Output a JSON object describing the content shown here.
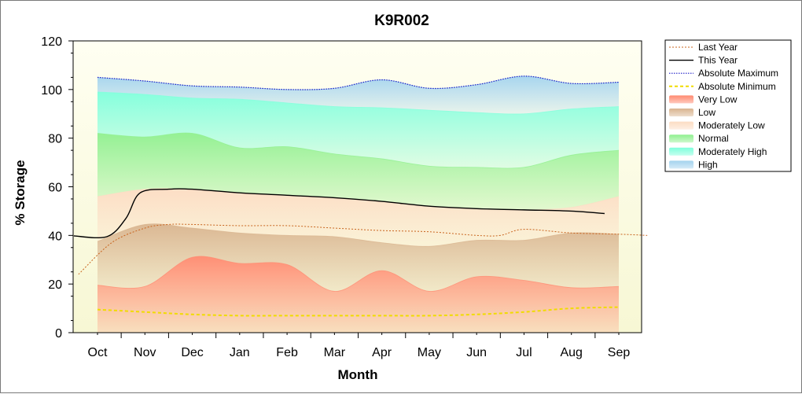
{
  "chart_data": {
    "type": "area",
    "title": "K9R002",
    "xlabel": "Month",
    "ylabel": "% Storage",
    "ylim": [
      0,
      120
    ],
    "yticks": [
      0,
      20,
      40,
      60,
      80,
      100,
      120
    ],
    "categories": [
      "Oct",
      "Nov",
      "Dec",
      "Jan",
      "Feb",
      "Mar",
      "Apr",
      "May",
      "Jun",
      "Jul",
      "Aug",
      "Sep"
    ],
    "grid": false,
    "legend_position": "right",
    "bands": [
      {
        "name": "Very Low",
        "color": "#ff8a70",
        "values": [
          19.5,
          19,
          31,
          28.5,
          28,
          17,
          25.5,
          17,
          23,
          21.5,
          18.5,
          19
        ]
      },
      {
        "name": "Low",
        "color": "#d9b48f",
        "values": [
          37.5,
          44.5,
          43,
          41,
          40,
          39.5,
          37,
          35.5,
          38,
          38,
          41,
          40.5
        ]
      },
      {
        "name": "Moderately Low",
        "color": "#fcdcc3",
        "values": [
          56,
          59,
          59,
          57.5,
          56.5,
          55.5,
          54,
          52,
          51,
          50.5,
          51.5,
          56
        ]
      },
      {
        "name": "Normal",
        "color": "#8ff08f",
        "values": [
          82,
          80.5,
          82,
          76,
          76.5,
          73.5,
          71.5,
          68.5,
          68,
          68,
          73,
          75
        ]
      },
      {
        "name": "Moderately High",
        "color": "#7fffdc",
        "values": [
          99,
          98,
          96.5,
          96,
          94.5,
          93,
          92.5,
          91.5,
          90.5,
          90,
          92,
          93
        ]
      },
      {
        "name": "High",
        "color": "#a3d3ee",
        "values": [
          105,
          103.5,
          101.5,
          101,
          100,
          100.5,
          104,
          100.5,
          102,
          105.5,
          102.5,
          103
        ]
      }
    ],
    "series": [
      {
        "name": "Last Year",
        "color": "#c8641e",
        "style": "dotted-thin",
        "x": [
          -0.4,
          0.3,
          1,
          1.5,
          2,
          3,
          4,
          5,
          6,
          7,
          8,
          8.5,
          9,
          10,
          11,
          11.6
        ],
        "values": [
          24,
          37,
          43,
          44.5,
          44.5,
          44,
          44,
          43,
          42,
          41.5,
          40,
          40,
          42.5,
          41,
          40.5,
          40
        ]
      },
      {
        "name": "This Year",
        "color": "#000000",
        "style": "solid",
        "x": [
          -0.5,
          0.2,
          0.6,
          0.9,
          1.5,
          2,
          3,
          4,
          5,
          6,
          7,
          8,
          9,
          10,
          10.7
        ],
        "values": [
          39.8,
          39.5,
          47,
          57.5,
          59,
          59,
          57.5,
          56.5,
          55.5,
          54,
          52,
          51,
          50.5,
          50,
          49
        ]
      },
      {
        "name": "Absolute Maximum",
        "color": "#1e1ec8",
        "style": "dotted",
        "x": [
          0,
          1,
          2,
          3,
          4,
          5,
          6,
          7,
          8,
          9,
          10,
          11
        ],
        "values": [
          105,
          103.5,
          101.5,
          101,
          100,
          100.5,
          104,
          100.5,
          102,
          105.5,
          102.5,
          103
        ]
      },
      {
        "name": "Absolute Minimum",
        "color": "#f0dc00",
        "style": "dashed",
        "x": [
          0,
          1,
          2,
          3,
          4,
          5,
          6,
          7,
          8,
          9,
          10,
          11
        ],
        "values": [
          9.5,
          8.5,
          7.5,
          7,
          7,
          7,
          7,
          7,
          7.5,
          8.5,
          10,
          10.5
        ]
      }
    ],
    "legend": [
      "Last Year",
      "This Year",
      "Absolute Maximum",
      "Absolute Minimum",
      "Very Low",
      "Low",
      "Moderately Low",
      "Normal",
      "Moderately High",
      "High"
    ]
  }
}
